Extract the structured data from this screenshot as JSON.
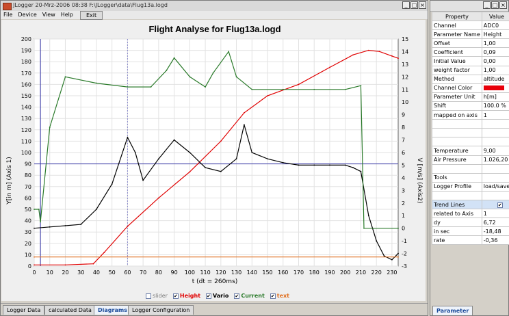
{
  "main_window": {
    "title": "JLogger   20-Mrz-2006    08:38        F:\\JLogger\\data\\Flug13a.logd",
    "menu": [
      "File",
      "Device",
      "View",
      "Help"
    ],
    "exit_label": "Exit"
  },
  "window_buttons": [
    "_",
    "□",
    "×"
  ],
  "chart": {
    "title": "Flight Analyse for Flug13a.logd",
    "xlabel": "t (dt = 260ms)",
    "ylabel_left": "Y[in m] (Axis 1)",
    "ylabel_right": "V [m/s] (Axis2)",
    "x_ticks": [
      "0",
      "10",
      "20",
      "30",
      "40",
      "50",
      "60",
      "70",
      "80",
      "90",
      "100",
      "110",
      "120",
      "130",
      "140",
      "150",
      "160",
      "170",
      "180",
      "190",
      "200",
      "210",
      "220",
      "230"
    ],
    "y_left_ticks": [
      "0",
      "10",
      "20",
      "30",
      "40",
      "50",
      "60",
      "70",
      "80",
      "90",
      "100",
      "110",
      "120",
      "130",
      "140",
      "150",
      "160",
      "170",
      "180",
      "190",
      "200"
    ],
    "y_right_ticks": [
      "-3",
      "-2",
      "-1",
      "0",
      "1",
      "2",
      "3",
      "4",
      "5",
      "6",
      "7",
      "8",
      "9",
      "10",
      "11",
      "12",
      "13",
      "14",
      "15"
    ]
  },
  "chart_data": {
    "type": "line",
    "title": "Flight Analyse for Flug13a.logd",
    "xlabel": "t (dt = 260ms)",
    "ylabel": "Y[in m] (Axis 1)",
    "y2label": "V [m/s] (Axis2)",
    "xlim": [
      0,
      234
    ],
    "ylim": [
      0,
      200
    ],
    "y2lim": [
      -3,
      15
    ],
    "grid": true,
    "series": [
      {
        "name": "Height",
        "axis": 1,
        "color": "#e00000",
        "x": [
          0,
          20,
          38,
          45,
          60,
          80,
          100,
          120,
          135,
          150,
          170,
          190,
          205,
          215,
          222,
          230,
          234
        ],
        "y": [
          1,
          1,
          2,
          12,
          35,
          60,
          83,
          110,
          135,
          150,
          160,
          175,
          186,
          190,
          189,
          185,
          183
        ]
      },
      {
        "name": "Vario",
        "axis": 2,
        "color": "#000000",
        "x": [
          0,
          10,
          20,
          30,
          40,
          50,
          60,
          65,
          70,
          80,
          90,
          100,
          110,
          120,
          130,
          135,
          140,
          150,
          160,
          170,
          180,
          190,
          200,
          205,
          210,
          215,
          220,
          225,
          230,
          234
        ],
        "y": [
          0,
          0.1,
          0.2,
          0.3,
          1.5,
          3.5,
          7.2,
          6,
          3.8,
          5.5,
          7,
          6,
          4.8,
          4.5,
          5.5,
          8.2,
          6,
          5.5,
          5.2,
          5,
          5,
          5,
          5,
          4.8,
          4.5,
          1,
          -1,
          -2.2,
          -2.5,
          -2
        ]
      },
      {
        "name": "Current",
        "axis": 2,
        "color": "#2a7a2a",
        "x": [
          0,
          3,
          4,
          10,
          20,
          40,
          60,
          75,
          85,
          90,
          100,
          110,
          115,
          125,
          130,
          140,
          160,
          180,
          200,
          210,
          212,
          234
        ],
        "y": [
          1.5,
          1.5,
          0.5,
          8,
          12,
          11.5,
          11.2,
          11.2,
          12.5,
          13.5,
          12,
          11.2,
          12.3,
          14,
          12,
          11,
          11,
          11,
          11,
          11.3,
          0,
          0
        ]
      },
      {
        "name": "text",
        "axis": 1,
        "color": "#e07020",
        "x": [
          0,
          234
        ],
        "y": [
          8,
          8
        ]
      }
    ],
    "legend": [
      "slider",
      "Height",
      "Vario",
      "Current",
      "text"
    ],
    "legend_checked": [
      false,
      true,
      true,
      true,
      true
    ],
    "legend_colors": [
      "#7a7a7a",
      "#e00000",
      "#000000",
      "#2a7a2a",
      "#e07020"
    ],
    "legend_placement": "bottom"
  },
  "tabs": [
    "Logger Data",
    "calculated Data",
    "Diagrams",
    "Logger Configuration"
  ],
  "active_tab": "Diagrams",
  "properties": {
    "headers": [
      "Property",
      "Value"
    ],
    "rows": [
      [
        "Channel",
        "ADC0"
      ],
      [
        "Parameter Name",
        "Height"
      ],
      [
        "Offset",
        "1,00"
      ],
      [
        "Coefficient",
        "0,09"
      ],
      [
        "Initial Value",
        "0,00"
      ],
      [
        "weight factor",
        "1,00"
      ],
      [
        "Method",
        "altitude"
      ],
      [
        "Channel Color",
        ""
      ],
      [
        "Parameter Unit",
        "h[m]"
      ],
      [
        "Shift",
        "100.0 %"
      ],
      [
        "mapped on axis",
        "1"
      ],
      [
        "",
        ""
      ],
      [
        "",
        ""
      ],
      [
        "",
        ""
      ],
      [
        "Temperature",
        "9,00"
      ],
      [
        "Air Pressure",
        "1.026,20"
      ],
      [
        "",
        ""
      ],
      [
        "Tools",
        ""
      ],
      [
        "Logger Profile",
        "load/save"
      ],
      [
        "",
        ""
      ],
      [
        "Trend Lines",
        ""
      ],
      [
        "related to Axis",
        "1"
      ],
      [
        "dy",
        "6,72"
      ],
      [
        "in sec",
        "-18,48"
      ],
      [
        "rate",
        "-0,36"
      ]
    ],
    "tab_label": "Parameter"
  }
}
